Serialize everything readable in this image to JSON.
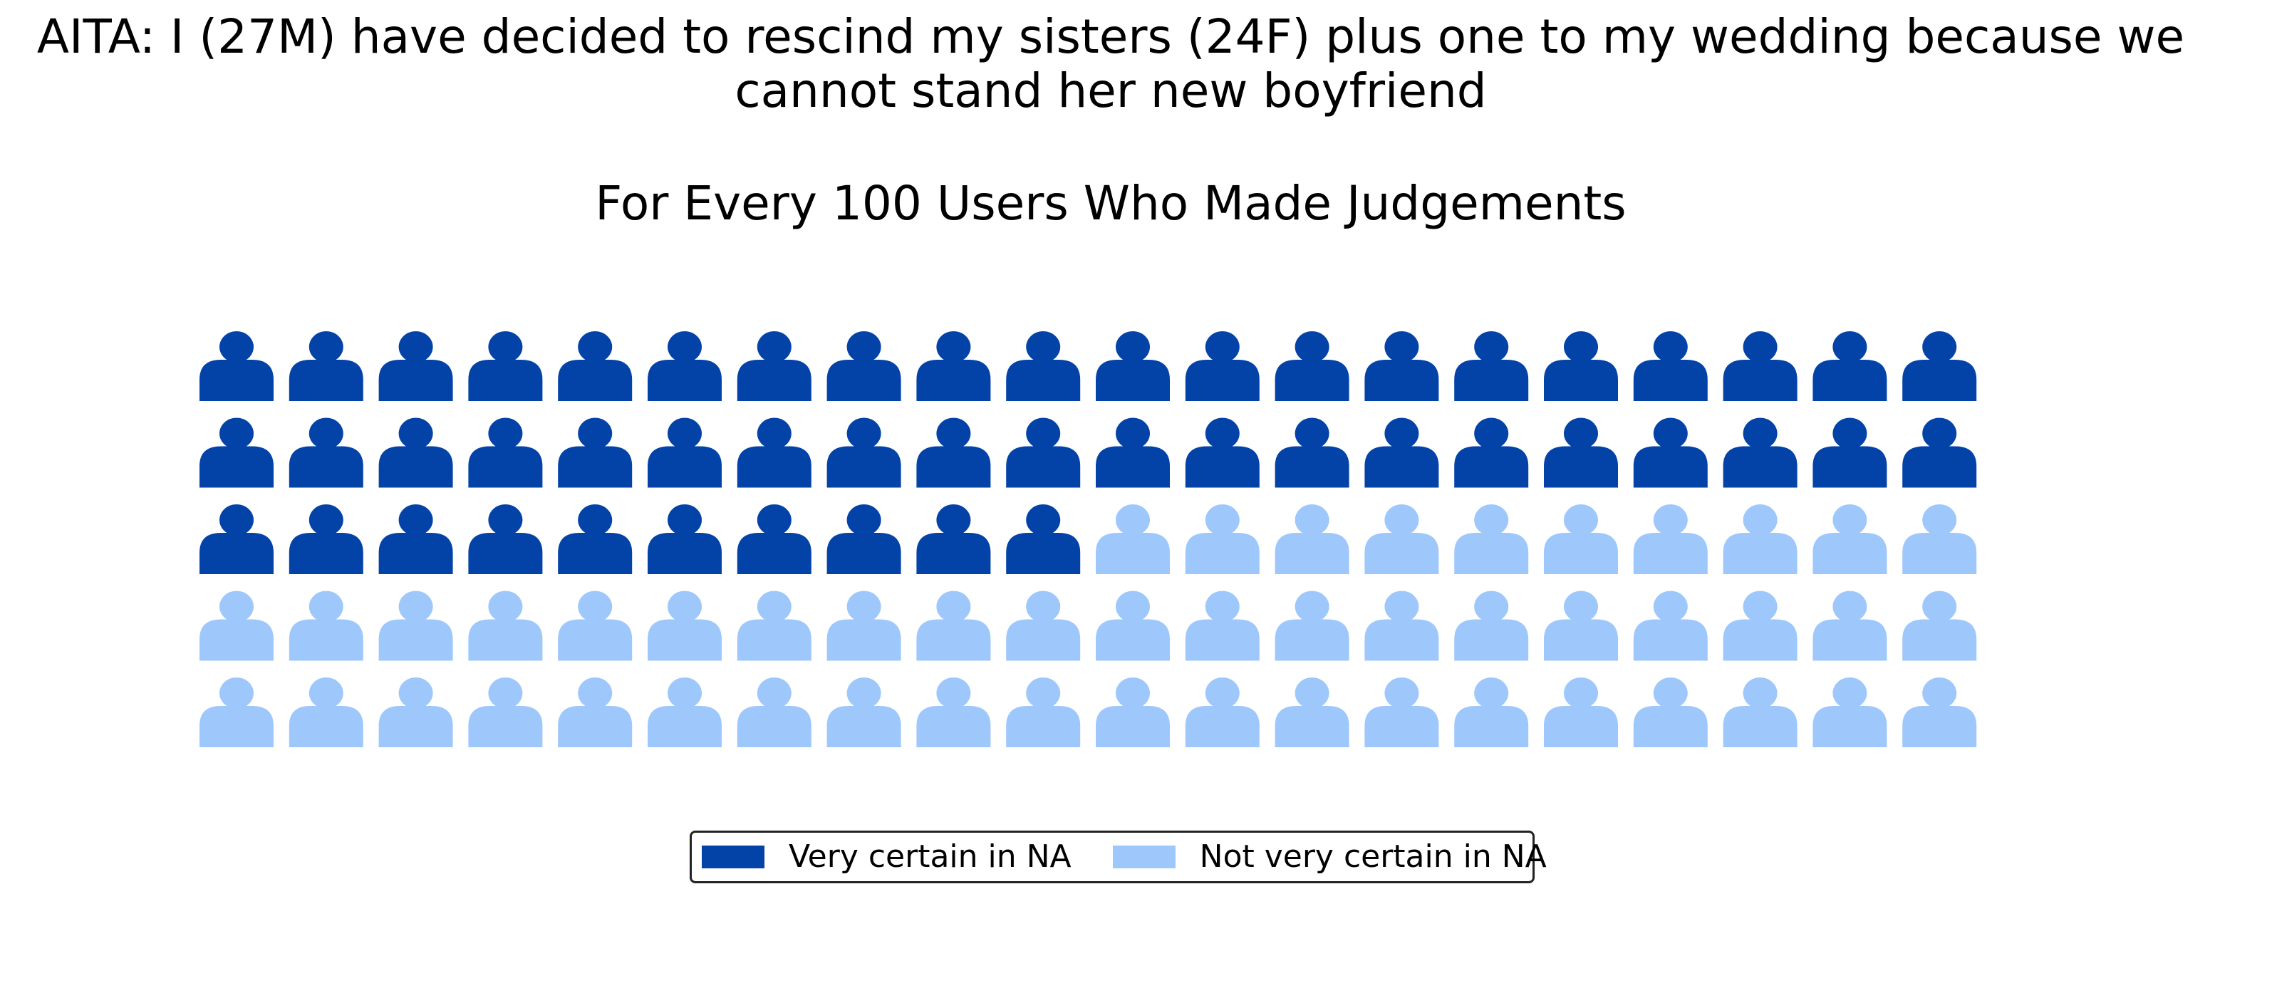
{
  "chart_data": {
    "type": "waffle",
    "title": "AITA: I (27M) have decided to rescind my sisters (24F) plus one to my wedding because we\ncannot stand her new boyfriend",
    "subtitle": "For Every 100 Users Who Made Judgements",
    "grid": {
      "rows": 5,
      "columns": 20
    },
    "series": [
      {
        "name": "Very certain in NA",
        "value": 50,
        "color": "#0343a8"
      },
      {
        "name": "Not very certain in NA",
        "value": 50,
        "color": "#9ec8fc"
      }
    ],
    "icon": "person-icon",
    "legend_position": "bottom-center"
  }
}
